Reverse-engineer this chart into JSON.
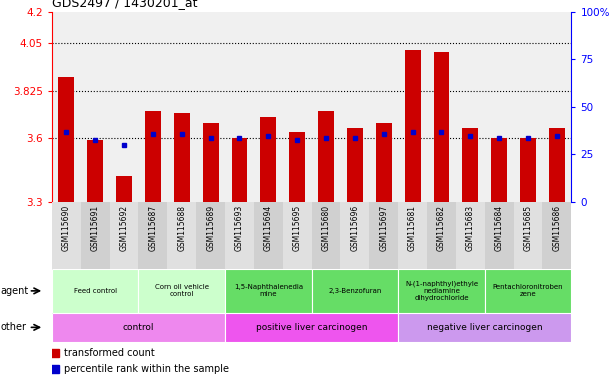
{
  "title": "GDS2497 / 1430201_at",
  "samples": [
    "GSM115690",
    "GSM115691",
    "GSM115692",
    "GSM115687",
    "GSM115688",
    "GSM115689",
    "GSM115693",
    "GSM115694",
    "GSM115695",
    "GSM115680",
    "GSM115696",
    "GSM115697",
    "GSM115681",
    "GSM115682",
    "GSM115683",
    "GSM115684",
    "GSM115685",
    "GSM115686"
  ],
  "bar_values": [
    3.89,
    3.59,
    3.42,
    3.73,
    3.72,
    3.67,
    3.6,
    3.7,
    3.63,
    3.73,
    3.65,
    3.67,
    4.02,
    4.01,
    3.65,
    3.6,
    3.6,
    3.65
  ],
  "percentile_values": [
    3.63,
    3.59,
    3.57,
    3.62,
    3.62,
    3.6,
    3.6,
    3.61,
    3.59,
    3.6,
    3.6,
    3.62,
    3.63,
    3.63,
    3.61,
    3.6,
    3.6,
    3.61
  ],
  "ylim": [
    3.3,
    4.2
  ],
  "yticks_left": [
    3.3,
    3.6,
    3.825,
    4.05,
    4.2
  ],
  "yticks_right": [
    0,
    25,
    50,
    75,
    100
  ],
  "hlines": [
    3.6,
    3.825,
    4.05
  ],
  "bar_color": "#cc0000",
  "percentile_color": "#0000cc",
  "agent_groups": [
    {
      "label": "Feed control",
      "start": 0,
      "end": 3,
      "color": "#ccffcc"
    },
    {
      "label": "Corn oil vehicle\ncontrol",
      "start": 3,
      "end": 6,
      "color": "#ccffcc"
    },
    {
      "label": "1,5-Naphthalenedia\nmine",
      "start": 6,
      "end": 9,
      "color": "#66dd66"
    },
    {
      "label": "2,3-Benzofuran",
      "start": 9,
      "end": 12,
      "color": "#66dd66"
    },
    {
      "label": "N-(1-naphthyl)ethyle\nnediamine\ndihydrochloride",
      "start": 12,
      "end": 15,
      "color": "#66dd66"
    },
    {
      "label": "Pentachloronitroben\nzene",
      "start": 15,
      "end": 18,
      "color": "#66dd66"
    }
  ],
  "other_groups": [
    {
      "label": "control",
      "start": 0,
      "end": 6,
      "color": "#ee88ee"
    },
    {
      "label": "positive liver carcinogen",
      "start": 6,
      "end": 12,
      "color": "#ee55ee"
    },
    {
      "label": "negative liver carcinogen",
      "start": 12,
      "end": 18,
      "color": "#cc99ee"
    }
  ],
  "fig_width": 6.11,
  "fig_height": 3.84,
  "dpi": 100
}
